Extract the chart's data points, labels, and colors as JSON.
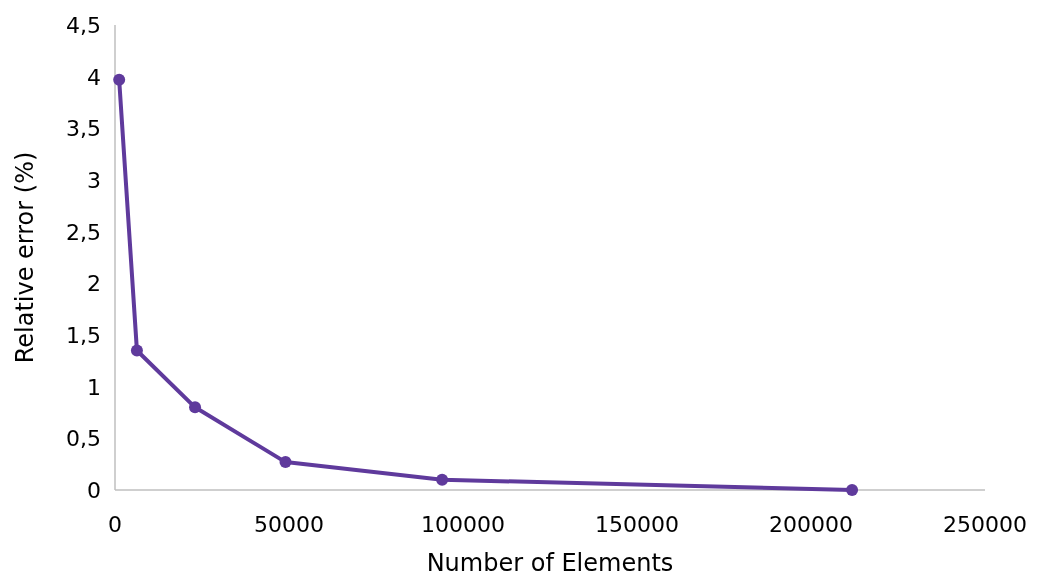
{
  "chart_data": {
    "type": "line",
    "xlabel": "Number of Elements",
    "ylabel": "Relative error (%)",
    "x": [
      1200,
      6300,
      23000,
      49000,
      94000,
      211800
    ],
    "series": [
      {
        "color": "#5f3a9c",
        "values": [
          3.97,
          1.35,
          0.8,
          0.27,
          0.1,
          0
        ]
      }
    ],
    "xlim": [
      0,
      250000
    ],
    "xticks": [
      0,
      50000,
      100000,
      150000,
      200000,
      250000
    ],
    "ylim": [
      0,
      4.5
    ],
    "yticks": [
      0,
      {
        "value": 0.5,
        "label": "0,5"
      },
      1,
      {
        "value": 1.5,
        "label": "1,5"
      },
      2,
      {
        "value": 2.5,
        "label": "2,5"
      },
      3,
      {
        "value": 3.5,
        "label": "3,5"
      },
      4,
      {
        "value": 4.5,
        "label": "4,5"
      }
    ],
    "marker": "circle",
    "line_style": "solid"
  }
}
